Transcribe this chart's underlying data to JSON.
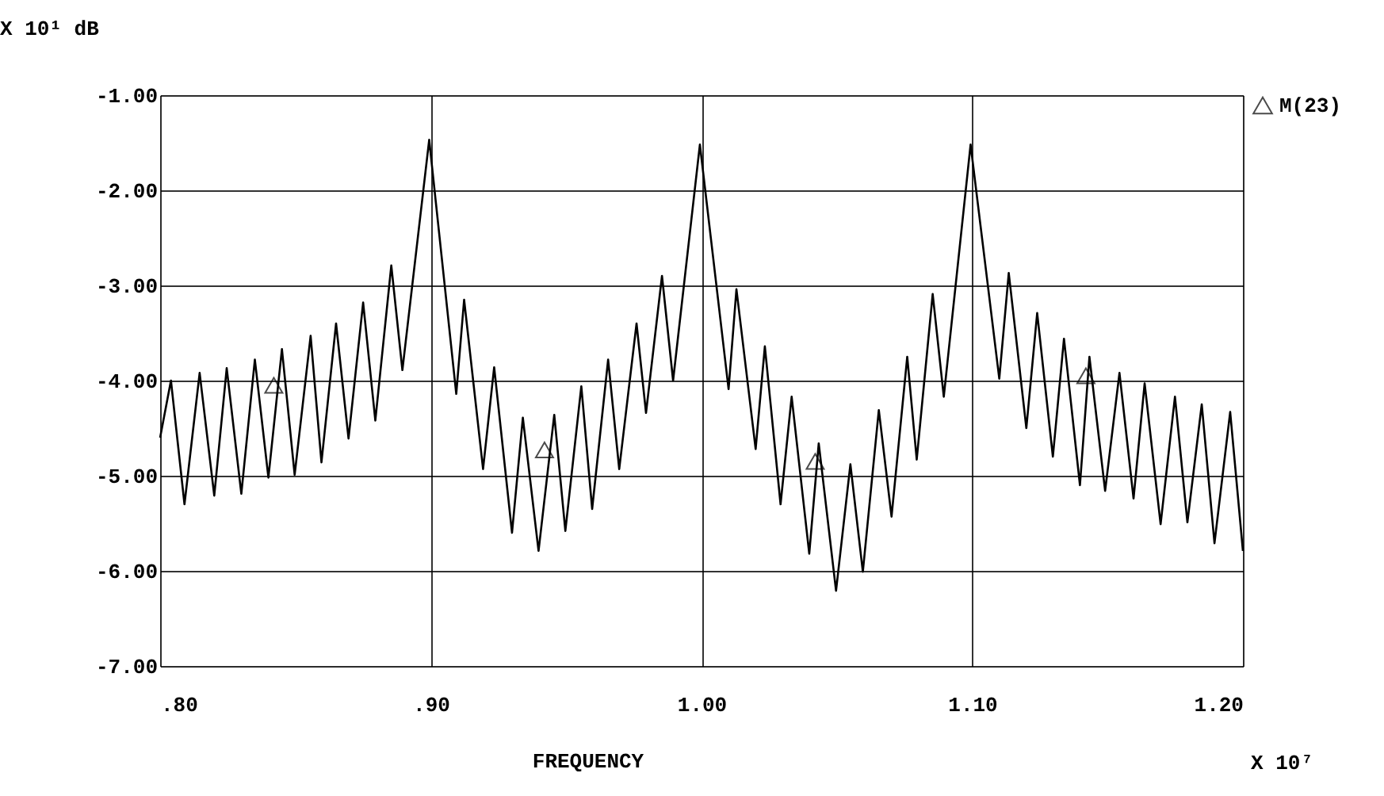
{
  "chart_data": {
    "type": "line",
    "ylabel": "X 10¹ dB",
    "xlabel": "FREQUENCY",
    "annotations": [
      "X 10⁷"
    ],
    "xlim": [
      0.8,
      1.2
    ],
    "ylim": [
      -7,
      -1
    ],
    "xticks": [
      {
        "value": 0.8,
        "label": ".80"
      },
      {
        "value": 0.9,
        "label": ".90"
      },
      {
        "value": 1.0,
        "label": "1.00"
      },
      {
        "value": 1.1,
        "label": "1.10"
      },
      {
        "value": 1.2,
        "label": "1.20"
      }
    ],
    "yticks": [
      {
        "value": -7,
        "label": "-7.00"
      },
      {
        "value": -6,
        "label": "-6.00"
      },
      {
        "value": -5,
        "label": "-5.00"
      },
      {
        "value": -4,
        "label": "-4.00"
      },
      {
        "value": -3,
        "label": "-3.00"
      },
      {
        "value": -2,
        "label": "-2.00"
      },
      {
        "value": -1,
        "label": "-1.00"
      }
    ],
    "grid": true,
    "legend": "top right",
    "line_style": "solid",
    "series": [
      {
        "color": "#000000",
        "x": [
          0.8,
          0.804,
          0.809,
          0.8146,
          0.82,
          0.8246,
          0.83,
          0.835,
          0.84,
          0.845,
          0.8497,
          0.8556,
          0.8596,
          0.865,
          0.8696,
          0.875,
          0.8795,
          0.8854,
          0.8895,
          0.8994,
          0.9094,
          0.9123,
          0.9193,
          0.9234,
          0.93,
          0.934,
          0.9398,
          0.9456,
          0.9497,
          0.9556,
          0.9596,
          0.9655,
          0.9696,
          0.976,
          0.9795,
          0.9854,
          0.9895,
          0.9994,
          1.01,
          1.0129,
          1.02,
          1.0234,
          1.0292,
          1.0333,
          1.0398,
          1.0433,
          1.0497,
          1.055,
          1.0596,
          1.0655,
          1.0702,
          1.076,
          1.0795,
          1.0854,
          1.0895,
          1.0994,
          1.11,
          1.1135,
          1.12,
          1.124,
          1.1298,
          1.1339,
          1.1398,
          1.1433,
          1.1491,
          1.1544,
          1.1596,
          1.1637,
          1.1696,
          1.1749,
          1.1795,
          1.1848,
          1.1895,
          1.1953,
          1.2
        ],
        "values": [
          -4.6,
          -4.0,
          -5.3,
          -3.92,
          -5.21,
          -3.87,
          -5.19,
          -3.78,
          -5.02,
          -3.67,
          -4.99,
          -3.53,
          -4.86,
          -3.4,
          -4.61,
          -3.18,
          -4.42,
          -2.79,
          -3.89,
          -1.47,
          -4.14,
          -3.15,
          -4.93,
          -3.86,
          -5.6,
          -4.39,
          -5.79,
          -4.36,
          -5.58,
          -4.06,
          -5.35,
          -3.78,
          -4.93,
          -3.4,
          -4.34,
          -2.9,
          -4.0,
          -1.52,
          -4.09,
          -3.04,
          -4.72,
          -3.64,
          -5.3,
          -4.17,
          -5.82,
          -4.66,
          -6.21,
          -4.88,
          -6.01,
          -4.31,
          -5.43,
          -3.75,
          -4.83,
          -3.09,
          -4.17,
          -1.52,
          -3.98,
          -2.87,
          -4.5,
          -3.29,
          -4.8,
          -3.56,
          -5.1,
          -3.75,
          -5.16,
          -3.92,
          -5.24,
          -4.03,
          -5.51,
          -4.17,
          -5.49,
          -4.25,
          -5.71,
          -4.33,
          -5.79
        ]
      },
      {
        "type": "scatter",
        "name": "M(23)",
        "color": "#000000",
        "marker": "triangle",
        "x": [
          0.842,
          0.942,
          1.042,
          1.142
        ],
        "values": [
          -4.05,
          -4.73,
          -4.85,
          -3.95
        ]
      }
    ]
  }
}
